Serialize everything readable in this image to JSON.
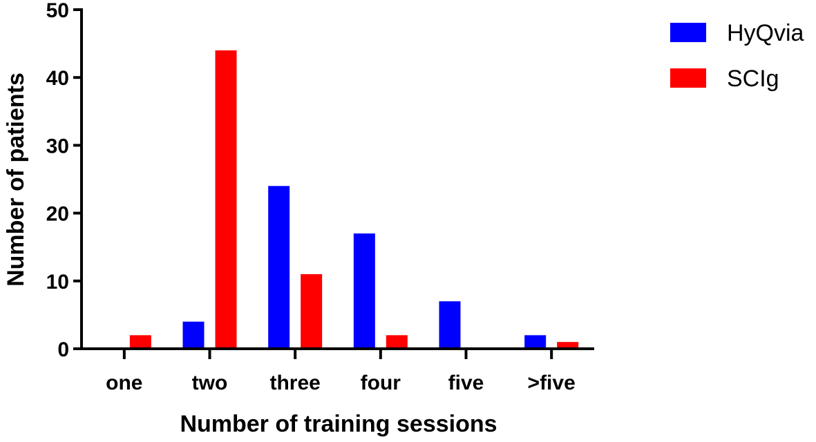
{
  "chart_data": {
    "type": "bar",
    "title": "",
    "xlabel": "Number of training sessions",
    "ylabel": "Number of patients",
    "categories": [
      "one",
      "two",
      "three",
      "four",
      "five",
      ">five"
    ],
    "series": [
      {
        "name": "HyQvia",
        "color": "#0000ff",
        "values": [
          0,
          4,
          24,
          17,
          7,
          2
        ]
      },
      {
        "name": "SCIg",
        "color": "#ff0000",
        "values": [
          2,
          44,
          11,
          2,
          0,
          1
        ]
      }
    ],
    "ylim": [
      0,
      50
    ],
    "yticks": [
      0,
      10,
      20,
      30,
      40,
      50
    ],
    "grid": false,
    "legend_position": "top-right"
  }
}
